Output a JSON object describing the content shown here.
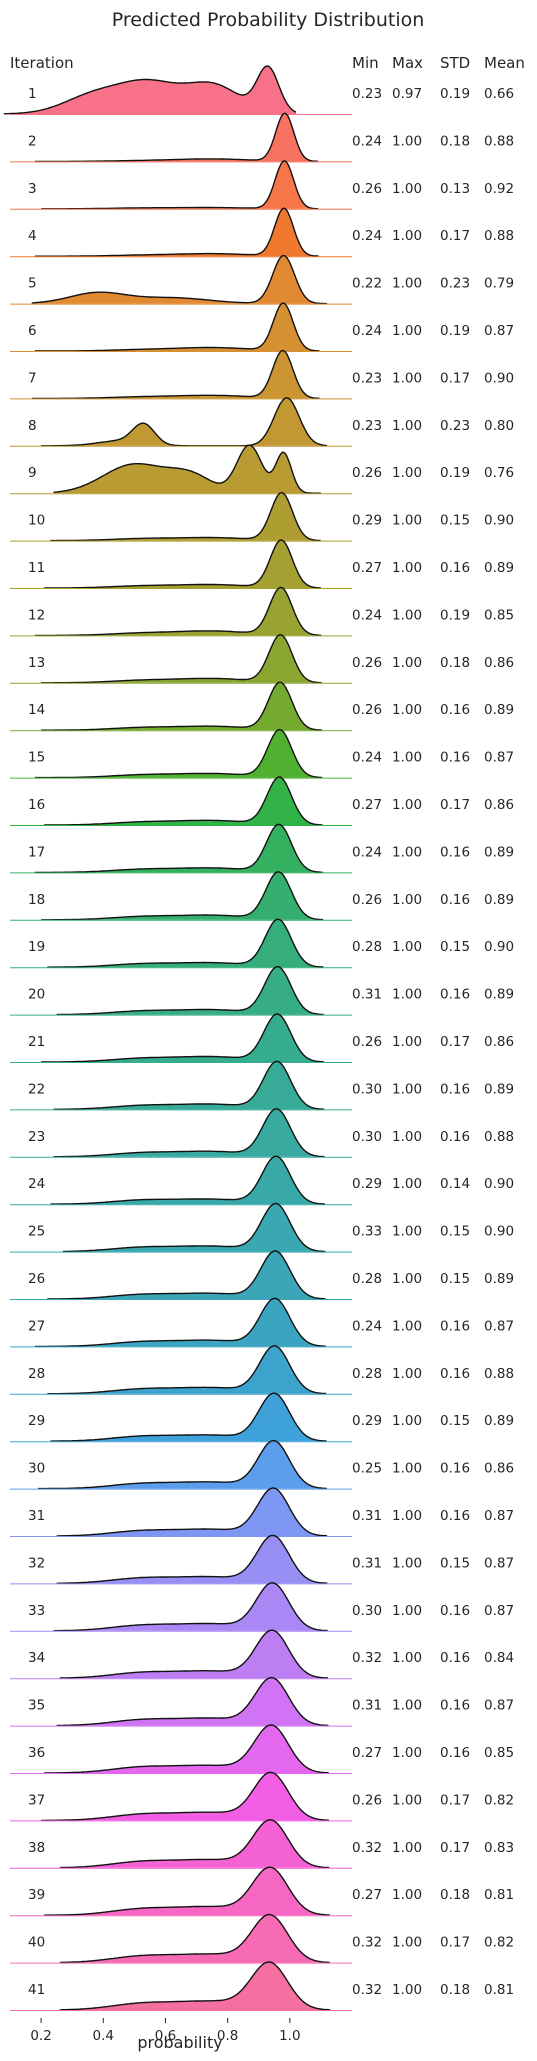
{
  "chart_data": {
    "type": "area",
    "title": "Predicted Probability Distribution",
    "xlabel": "probability",
    "row_header": "Iteration",
    "stat_headers": [
      "Min",
      "Max",
      "STD",
      "Mean"
    ],
    "xlim": [
      0.1,
      1.2
    ],
    "xticks": [
      "0.2",
      "0.4",
      "0.6",
      "0.8",
      "1.0"
    ],
    "xtick_values": [
      0.2,
      0.4,
      0.6,
      0.8,
      1.0
    ],
    "grid": false,
    "rows": [
      {
        "iteration": "1",
        "min": "0.23",
        "max": "0.97",
        "std": "0.19",
        "mean": "0.66",
        "color": "#f77189"
      },
      {
        "iteration": "2",
        "min": "0.24",
        "max": "1.00",
        "std": "0.18",
        "mean": "0.88",
        "color": "#f7735f"
      },
      {
        "iteration": "3",
        "min": "0.26",
        "max": "1.00",
        "std": "0.13",
        "mean": "0.92",
        "color": "#f6764a"
      },
      {
        "iteration": "4",
        "min": "0.24",
        "max": "1.00",
        "std": "0.17",
        "mean": "0.88",
        "color": "#f0792f"
      },
      {
        "iteration": "5",
        "min": "0.22",
        "max": "1.00",
        "std": "0.23",
        "mean": "0.79",
        "color": "#e18a32"
      },
      {
        "iteration": "6",
        "min": "0.24",
        "max": "1.00",
        "std": "0.19",
        "mean": "0.87",
        "color": "#d59032"
      },
      {
        "iteration": "7",
        "min": "0.23",
        "max": "1.00",
        "std": "0.17",
        "mean": "0.90",
        "color": "#ca9532"
      },
      {
        "iteration": "8",
        "min": "0.23",
        "max": "1.00",
        "std": "0.23",
        "mean": "0.80",
        "color": "#c29832"
      },
      {
        "iteration": "9",
        "min": "0.26",
        "max": "1.00",
        "std": "0.19",
        "mean": "0.76",
        "color": "#b89b32"
      },
      {
        "iteration": "10",
        "min": "0.29",
        "max": "1.00",
        "std": "0.15",
        "mean": "0.90",
        "color": "#ae9d31"
      },
      {
        "iteration": "11",
        "min": "0.27",
        "max": "1.00",
        "std": "0.16",
        "mean": "0.89",
        "color": "#a4a031"
      },
      {
        "iteration": "12",
        "min": "0.24",
        "max": "1.00",
        "std": "0.19",
        "mean": "0.85",
        "color": "#99a331"
      },
      {
        "iteration": "13",
        "min": "0.26",
        "max": "1.00",
        "std": "0.18",
        "mean": "0.86",
        "color": "#8aa631"
      },
      {
        "iteration": "14",
        "min": "0.26",
        "max": "1.00",
        "std": "0.16",
        "mean": "0.89",
        "color": "#75aa31"
      },
      {
        "iteration": "15",
        "min": "0.24",
        "max": "1.00",
        "std": "0.16",
        "mean": "0.87",
        "color": "#50b131"
      },
      {
        "iteration": "16",
        "min": "0.27",
        "max": "1.00",
        "std": "0.17",
        "mean": "0.86",
        "color": "#32b347"
      },
      {
        "iteration": "17",
        "min": "0.24",
        "max": "1.00",
        "std": "0.16",
        "mean": "0.89",
        "color": "#34b15e"
      },
      {
        "iteration": "18",
        "min": "0.26",
        "max": "1.00",
        "std": "0.16",
        "mean": "0.89",
        "color": "#35af6f"
      },
      {
        "iteration": "19",
        "min": "0.28",
        "max": "1.00",
        "std": "0.15",
        "mean": "0.90",
        "color": "#35ae7b"
      },
      {
        "iteration": "20",
        "min": "0.31",
        "max": "1.00",
        "std": "0.16",
        "mean": "0.89",
        "color": "#36ad86"
      },
      {
        "iteration": "21",
        "min": "0.26",
        "max": "1.00",
        "std": "0.17",
        "mean": "0.86",
        "color": "#36ac8f"
      },
      {
        "iteration": "22",
        "min": "0.30",
        "max": "1.00",
        "std": "0.16",
        "mean": "0.89",
        "color": "#37ab98"
      },
      {
        "iteration": "23",
        "min": "0.30",
        "max": "1.00",
        "std": "0.16",
        "mean": "0.88",
        "color": "#38aaa0"
      },
      {
        "iteration": "24",
        "min": "0.29",
        "max": "1.00",
        "std": "0.14",
        "mean": "0.90",
        "color": "#38a9a8"
      },
      {
        "iteration": "25",
        "min": "0.33",
        "max": "1.00",
        "std": "0.15",
        "mean": "0.90",
        "color": "#39a8b0"
      },
      {
        "iteration": "26",
        "min": "0.28",
        "max": "1.00",
        "std": "0.15",
        "mean": "0.89",
        "color": "#3aa6b8"
      },
      {
        "iteration": "27",
        "min": "0.24",
        "max": "1.00",
        "std": "0.16",
        "mean": "0.87",
        "color": "#3ba5c1"
      },
      {
        "iteration": "28",
        "min": "0.28",
        "max": "1.00",
        "std": "0.16",
        "mean": "0.88",
        "color": "#3ca3cc"
      },
      {
        "iteration": "29",
        "min": "0.29",
        "max": "1.00",
        "std": "0.15",
        "mean": "0.89",
        "color": "#3ea1d9"
      },
      {
        "iteration": "30",
        "min": "0.25",
        "max": "1.00",
        "std": "0.16",
        "mean": "0.86",
        "color": "#5c9eeb"
      },
      {
        "iteration": "31",
        "min": "0.31",
        "max": "1.00",
        "std": "0.16",
        "mean": "0.87",
        "color": "#7f97f4"
      },
      {
        "iteration": "32",
        "min": "0.31",
        "max": "1.00",
        "std": "0.15",
        "mean": "0.87",
        "color": "#978ff4"
      },
      {
        "iteration": "33",
        "min": "0.30",
        "max": "1.00",
        "std": "0.16",
        "mean": "0.87",
        "color": "#aa87f4"
      },
      {
        "iteration": "34",
        "min": "0.32",
        "max": "1.00",
        "std": "0.16",
        "mean": "0.84",
        "color": "#bd7ef4"
      },
      {
        "iteration": "35",
        "min": "0.31",
        "max": "1.00",
        "std": "0.16",
        "mean": "0.87",
        "color": "#d073f4"
      },
      {
        "iteration": "36",
        "min": "0.27",
        "max": "1.00",
        "std": "0.16",
        "mean": "0.85",
        "color": "#e468ef"
      },
      {
        "iteration": "37",
        "min": "0.26",
        "max": "1.00",
        "std": "0.17",
        "mean": "0.82",
        "color": "#f35fe4"
      },
      {
        "iteration": "38",
        "min": "0.32",
        "max": "1.00",
        "std": "0.17",
        "mean": "0.83",
        "color": "#f562d4"
      },
      {
        "iteration": "39",
        "min": "0.27",
        "max": "1.00",
        "std": "0.18",
        "mean": "0.81",
        "color": "#f666c3"
      },
      {
        "iteration": "40",
        "min": "0.32",
        "max": "1.00",
        "std": "0.17",
        "mean": "0.82",
        "color": "#f66bb3"
      },
      {
        "iteration": "41",
        "min": "0.32",
        "max": "1.00",
        "std": "0.18",
        "mean": "0.81",
        "color": "#f66fa1"
      }
    ]
  }
}
